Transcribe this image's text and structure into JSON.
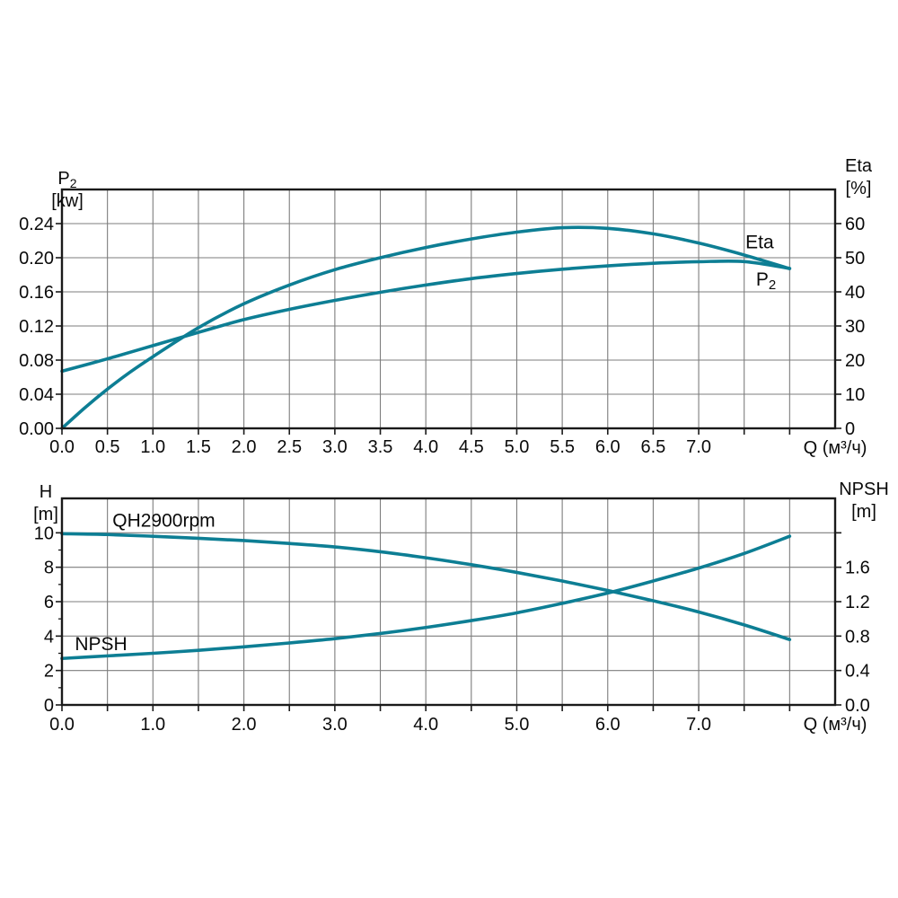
{
  "figure": {
    "background": "#ffffff",
    "curve_color": "#0d7e94",
    "grid_color": "#7d7d7d",
    "axis_color": "#1a1a1a",
    "text_color": "#0a0a0a"
  },
  "chart_data": [
    {
      "type": "line",
      "name": "power-efficiency-chart",
      "x_axis": {
        "title": "Q (м³/ч)",
        "min": 0,
        "max": 8.5,
        "ticks": [
          0,
          0.5,
          1,
          1.5,
          2,
          2.5,
          3,
          3.5,
          4,
          4.5,
          5,
          5.5,
          6,
          6.5,
          7,
          7.5,
          8
        ],
        "grid": [
          0.5,
          1,
          1.5,
          2,
          2.5,
          3,
          3.5,
          4,
          4.5,
          5,
          5.5,
          6,
          6.5,
          7,
          7.5,
          8
        ],
        "tick_labels": [
          [
            0,
            "0.0"
          ],
          [
            0.5,
            "0.5"
          ],
          [
            1,
            "1.0"
          ],
          [
            1.5,
            "1.5"
          ],
          [
            2,
            "2.0"
          ],
          [
            2.5,
            "2.5"
          ],
          [
            3,
            "3.0"
          ],
          [
            3.5,
            "3.5"
          ],
          [
            4,
            "4.0"
          ],
          [
            4.5,
            "4.5"
          ],
          [
            5,
            "5.0"
          ],
          [
            5.5,
            "5.5"
          ],
          [
            6,
            "6.0"
          ],
          [
            6.5,
            "6.5"
          ],
          [
            7,
            "7.0"
          ]
        ]
      },
      "y_left": {
        "title_lines": [
          "P₂",
          "[kw]"
        ],
        "min": 0,
        "max": 0.28,
        "grid": [
          0.04,
          0.08,
          0.12,
          0.16,
          0.2,
          0.24
        ],
        "ticks": [
          0,
          0.04,
          0.08,
          0.12,
          0.16,
          0.2,
          0.24
        ],
        "minor_ticks": [],
        "tick_labels": [
          [
            0,
            "0.00"
          ],
          [
            0.04,
            "0.04"
          ],
          [
            0.08,
            "0.08"
          ],
          [
            0.12,
            "0.12"
          ],
          [
            0.16,
            "0.16"
          ],
          [
            0.2,
            "0.20"
          ],
          [
            0.24,
            "0.24"
          ]
        ]
      },
      "y_right": {
        "title_lines": [
          "Eta",
          "[%]"
        ],
        "min": 0,
        "max": 70,
        "ticks": [
          0,
          10,
          20,
          30,
          40,
          50,
          60
        ],
        "minor_ticks": [],
        "tick_labels": [
          [
            0,
            "0"
          ],
          [
            10,
            "10"
          ],
          [
            20,
            "20"
          ],
          [
            30,
            "30"
          ],
          [
            40,
            "40"
          ],
          [
            50,
            "50"
          ],
          [
            60,
            "60"
          ]
        ]
      },
      "series": [
        {
          "name": "P2",
          "axis": "left",
          "points": [
            [
              0,
              0.067
            ],
            [
              0.5,
              0.0815
            ],
            [
              1,
              0.097
            ],
            [
              1.5,
              0.1125
            ],
            [
              2,
              0.1275
            ],
            [
              2.5,
              0.1395
            ],
            [
              3,
              0.15
            ],
            [
              3.5,
              0.1595
            ],
            [
              4,
              0.168
            ],
            [
              4.5,
              0.1755
            ],
            [
              5,
              0.1815
            ],
            [
              5.5,
              0.1865
            ],
            [
              6,
              0.1905
            ],
            [
              6.5,
              0.1935
            ],
            [
              7,
              0.1953
            ],
            [
              7.5,
              0.1955
            ],
            [
              8,
              0.1875
            ]
          ]
        },
        {
          "name": "Eta",
          "axis": "right",
          "points": [
            [
              0,
              0
            ],
            [
              0.25,
              6
            ],
            [
              0.5,
              11.5
            ],
            [
              0.75,
              16.5
            ],
            [
              1,
              21
            ],
            [
              1.5,
              29.5
            ],
            [
              2,
              36.5
            ],
            [
              2.5,
              42
            ],
            [
              3,
              46.5
            ],
            [
              3.5,
              50
            ],
            [
              4,
              53
            ],
            [
              4.5,
              55.5
            ],
            [
              5,
              57.5
            ],
            [
              5.5,
              58.8
            ],
            [
              6,
              58.6
            ],
            [
              6.5,
              57
            ],
            [
              7,
              54.3
            ],
            [
              7.5,
              50.8
            ],
            [
              8,
              46.8
            ]
          ]
        }
      ],
      "annotations": [
        {
          "text": "Eta",
          "axis": "left",
          "x": 7.67,
          "y": 0.2185
        },
        {
          "text": "P₂",
          "axis": "left",
          "x": 7.74,
          "y": 0.175
        }
      ]
    },
    {
      "type": "line",
      "name": "head-npsh-chart",
      "x_axis": {
        "title": "Q (м³/ч)",
        "min": 0,
        "max": 8.5,
        "ticks": [
          0,
          0.5,
          1,
          1.5,
          2,
          2.5,
          3,
          3.5,
          4,
          4.5,
          5,
          5.5,
          6,
          6.5,
          7,
          7.5,
          8
        ],
        "grid": [
          0.5,
          1,
          1.5,
          2,
          2.5,
          3,
          3.5,
          4,
          4.5,
          5,
          5.5,
          6,
          6.5,
          7,
          7.5,
          8
        ],
        "tick_labels": [
          [
            0,
            "0.0"
          ],
          [
            1,
            "1.0"
          ],
          [
            2,
            "2.0"
          ],
          [
            3,
            "3.0"
          ],
          [
            4,
            "4.0"
          ],
          [
            5,
            "5.0"
          ],
          [
            6,
            "6.0"
          ],
          [
            7,
            "7.0"
          ]
        ]
      },
      "y_left": {
        "title_lines": [
          "H",
          "[m]"
        ],
        "min": 0,
        "max": 12,
        "grid": [
          2,
          4,
          6,
          8,
          10
        ],
        "ticks": [
          0,
          2,
          4,
          6,
          8,
          10
        ],
        "minor_ticks": [
          1,
          3,
          5,
          7,
          9
        ],
        "tick_labels": [
          [
            0,
            "0"
          ],
          [
            2,
            "2"
          ],
          [
            4,
            "4"
          ],
          [
            6,
            "6"
          ],
          [
            8,
            "8"
          ],
          [
            10,
            "10"
          ]
        ]
      },
      "y_right": {
        "title_lines": [
          "NPSH",
          "[m]"
        ],
        "min": 0,
        "max": 2.4,
        "ticks": [
          0,
          0.4,
          0.8,
          1.2,
          1.6,
          2.0
        ],
        "minor_ticks": [],
        "tick_labels": [
          [
            0,
            "0.0"
          ],
          [
            0.4,
            "0.4"
          ],
          [
            0.8,
            "0.8"
          ],
          [
            1.2,
            "1.2"
          ],
          [
            1.6,
            "1.6"
          ]
        ]
      },
      "series": [
        {
          "name": "QH2900rpm",
          "axis": "left",
          "points": [
            [
              0,
              9.95
            ],
            [
              0.5,
              9.9
            ],
            [
              1,
              9.8
            ],
            [
              1.5,
              9.68
            ],
            [
              2,
              9.55
            ],
            [
              2.5,
              9.38
            ],
            [
              3,
              9.18
            ],
            [
              3.5,
              8.9
            ],
            [
              4,
              8.55
            ],
            [
              4.5,
              8.15
            ],
            [
              5,
              7.7
            ],
            [
              5.5,
              7.2
            ],
            [
              6,
              6.65
            ],
            [
              6.5,
              6.05
            ],
            [
              7,
              5.4
            ],
            [
              7.5,
              4.65
            ],
            [
              8,
              3.8
            ]
          ]
        },
        {
          "name": "NPSH",
          "axis": "right",
          "points": [
            [
              0,
              0.54
            ],
            [
              0.5,
              0.57
            ],
            [
              1,
              0.6
            ],
            [
              1.5,
              0.635
            ],
            [
              2,
              0.675
            ],
            [
              2.5,
              0.72
            ],
            [
              3,
              0.77
            ],
            [
              3.5,
              0.83
            ],
            [
              4,
              0.9
            ],
            [
              4.5,
              0.98
            ],
            [
              5,
              1.07
            ],
            [
              5.5,
              1.18
            ],
            [
              6,
              1.3
            ],
            [
              6.5,
              1.44
            ],
            [
              7,
              1.59
            ],
            [
              7.5,
              1.76
            ],
            [
              8,
              1.96
            ]
          ]
        }
      ],
      "annotations": [
        {
          "text": "QH2900rpm",
          "axis": "left",
          "x": 1.12,
          "y": 10.72
        },
        {
          "text": "NPSH",
          "axis": "left",
          "x": 0.43,
          "y": 3.55
        }
      ]
    }
  ]
}
